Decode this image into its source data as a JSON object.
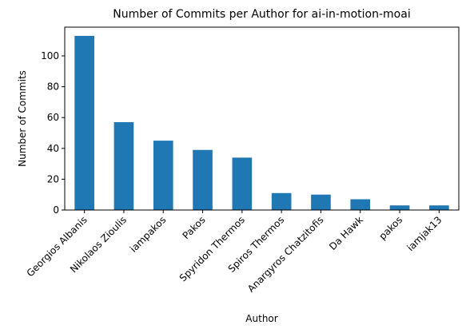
{
  "chart_data": {
    "type": "bar",
    "title": "Number of Commits per Author for ai-in-motion-moai",
    "xlabel": "Author",
    "ylabel": "Number of Commits",
    "categories": [
      "Georgios Albanis",
      "Nikolaos Zioulis",
      "iampakos",
      "Pakos",
      "Spyridon Thermos",
      "Spiros Thermos",
      "Anargyros Chatzitofis",
      "Da Hawk",
      "pakos",
      "iamjak13"
    ],
    "values": [
      113,
      57,
      45,
      39,
      34,
      11,
      10,
      7,
      3,
      3
    ],
    "ylim": [
      0,
      118.65
    ],
    "yticks": [
      0,
      20,
      40,
      60,
      80,
      100
    ],
    "grid": false,
    "legend": "none",
    "bar_color": "#1f77b4"
  }
}
